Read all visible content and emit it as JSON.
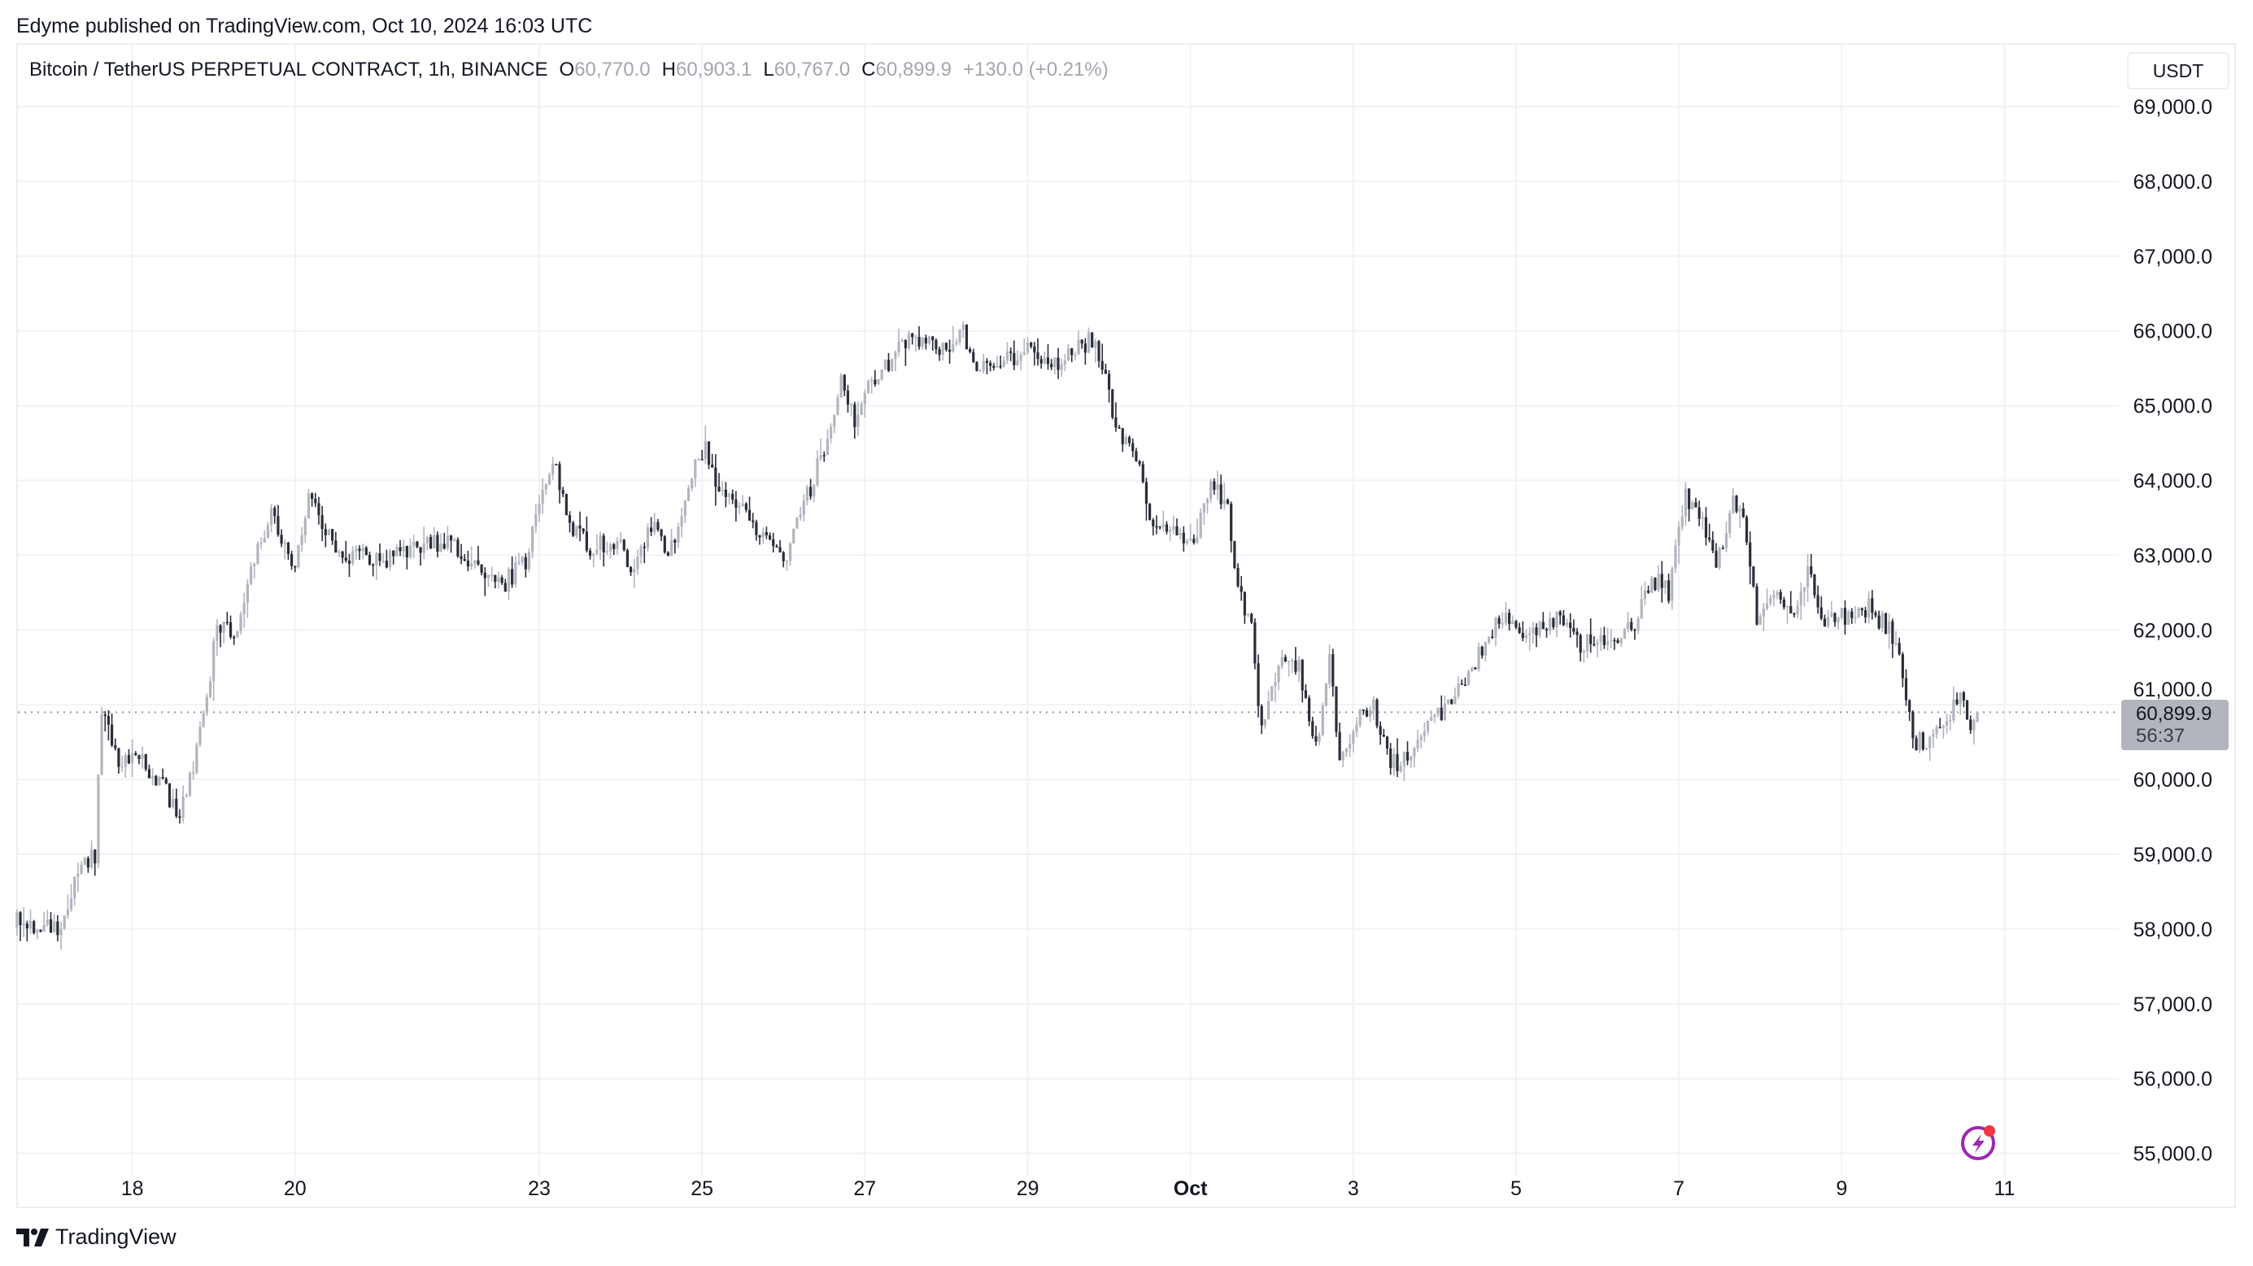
{
  "header": {
    "published": "Edyme published on TradingView.com, Oct 10, 2024 16:03 UTC"
  },
  "legend": {
    "symbol": "Bitcoin / TetherUS PERPETUAL CONTRACT, 1h, BINANCE",
    "o_label": "O",
    "o": "60,770.0",
    "h_label": "H",
    "h": "60,903.1",
    "l_label": "L",
    "l": "60,767.0",
    "c_label": "C",
    "c": "60,899.9",
    "change": "+130.0 (+0.21%)"
  },
  "currency_button": "USDT",
  "last_price": {
    "value": "60,899.9",
    "countdown": "56:37"
  },
  "footer": {
    "brand": "TradingView"
  },
  "icons": {
    "alert": "lightning-alert-icon",
    "logo": "tradingview-logo-icon"
  },
  "colors": {
    "up": "#b2b5be",
    "down": "#2a2e39",
    "grid": "#f0f2f6",
    "alert": "#9c27b0",
    "alert_dot": "#f23645"
  },
  "chart_data": {
    "type": "candlestick",
    "interval": "1h",
    "ylim": [
      55000,
      69000
    ],
    "y_ticks": [
      "55,000.0",
      "56,000.0",
      "57,000.0",
      "58,000.0",
      "59,000.0",
      "60,000.0",
      "61,000.0",
      "62,000.0",
      "63,000.0",
      "64,000.0",
      "65,000.0",
      "66,000.0",
      "67,000.0",
      "68,000.0",
      "69,000.0"
    ],
    "x_ticks": [
      {
        "label": "18",
        "date": "2024-09-18"
      },
      {
        "label": "20",
        "date": "2024-09-20"
      },
      {
        "label": "23",
        "date": "2024-09-23"
      },
      {
        "label": "25",
        "date": "2024-09-25"
      },
      {
        "label": "27",
        "date": "2024-09-27"
      },
      {
        "label": "29",
        "date": "2024-09-29"
      },
      {
        "label": "Oct",
        "date": "2024-10-01",
        "bold": true
      },
      {
        "label": "3",
        "date": "2024-10-03"
      },
      {
        "label": "5",
        "date": "2024-10-05"
      },
      {
        "label": "7",
        "date": "2024-10-07"
      },
      {
        "label": "9",
        "date": "2024-10-09"
      },
      {
        "label": "11",
        "date": "2024-10-11"
      }
    ],
    "grid": true,
    "last_candle": {
      "time": "2024-10-10T16:00",
      "open": 60770.0,
      "high": 60903.1,
      "low": 60767.0,
      "close": 60899.9
    },
    "close_path": [
      [
        "2024-09-16T14:00",
        58100
      ],
      [
        "2024-09-17T02:00",
        58000
      ],
      [
        "2024-09-17T08:00",
        58700
      ],
      [
        "2024-09-17T13:00",
        59000
      ],
      [
        "2024-09-17T15:00",
        61000
      ],
      [
        "2024-09-17T19:00",
        60300
      ],
      [
        "2024-09-18T01:00",
        60300
      ],
      [
        "2024-09-18T08:00",
        60000
      ],
      [
        "2024-09-18T14:00",
        59500
      ],
      [
        "2024-09-18T18:00",
        60200
      ],
      [
        "2024-09-18T22:00",
        61000
      ],
      [
        "2024-09-19T01:00",
        62100
      ],
      [
        "2024-09-19T07:00",
        62000
      ],
      [
        "2024-09-19T11:00",
        62800
      ],
      [
        "2024-09-19T17:00",
        63600
      ],
      [
        "2024-09-20T00:00",
        62800
      ],
      [
        "2024-09-20T04:00",
        63800
      ],
      [
        "2024-09-20T08:00",
        63400
      ],
      [
        "2024-09-20T15:00",
        62800
      ],
      [
        "2024-09-20T19:00",
        63100
      ],
      [
        "2024-09-21T01:00",
        62900
      ],
      [
        "2024-09-21T12:00",
        63100
      ],
      [
        "2024-09-21T20:00",
        63200
      ],
      [
        "2024-09-22T05:00",
        62900
      ],
      [
        "2024-09-22T13:00",
        62600
      ],
      [
        "2024-09-22T20:00",
        62900
      ],
      [
        "2024-09-23T00:00",
        63800
      ],
      [
        "2024-09-23T04:00",
        64300
      ],
      [
        "2024-09-23T08:00",
        63500
      ],
      [
        "2024-09-23T15:00",
        63100
      ],
      [
        "2024-09-23T23:00",
        63200
      ],
      [
        "2024-09-24T03:00",
        62800
      ],
      [
        "2024-09-24T10:00",
        63500
      ],
      [
        "2024-09-24T14:00",
        62900
      ],
      [
        "2024-09-24T20:00",
        64000
      ],
      [
        "2024-09-25T01:00",
        64400
      ],
      [
        "2024-09-25T05:00",
        63900
      ],
      [
        "2024-09-25T11:00",
        63700
      ],
      [
        "2024-09-25T18:00",
        63200
      ],
      [
        "2024-09-26T00:00",
        62900
      ],
      [
        "2024-09-26T04:00",
        63500
      ],
      [
        "2024-09-26T08:00",
        63900
      ],
      [
        "2024-09-26T13:00",
        64600
      ],
      [
        "2024-09-26T17:00",
        65400
      ],
      [
        "2024-09-26T21:00",
        64800
      ],
      [
        "2024-09-27T01:00",
        65300
      ],
      [
        "2024-09-27T08:00",
        65600
      ],
      [
        "2024-09-27T14:00",
        66000
      ],
      [
        "2024-09-27T18:00",
        65800
      ],
      [
        "2024-09-28T01:00",
        65800
      ],
      [
        "2024-09-28T05:00",
        66000
      ],
      [
        "2024-09-28T09:00",
        65500
      ],
      [
        "2024-09-28T18:00",
        65600
      ],
      [
        "2024-09-29T00:00",
        65800
      ],
      [
        "2024-09-29T06:00",
        65500
      ],
      [
        "2024-09-29T13:00",
        65700
      ],
      [
        "2024-09-29T19:00",
        65900
      ],
      [
        "2024-09-29T23:00",
        65400
      ],
      [
        "2024-09-30T02:00",
        64700
      ],
      [
        "2024-09-30T08:00",
        64300
      ],
      [
        "2024-09-30T12:00",
        63500
      ],
      [
        "2024-09-30T18:00",
        63400
      ],
      [
        "2024-10-01T01:00",
        63200
      ],
      [
        "2024-10-01T07:00",
        64000
      ],
      [
        "2024-10-01T11:00",
        63600
      ],
      [
        "2024-10-01T14:00",
        62600
      ],
      [
        "2024-10-01T18:00",
        62000
      ],
      [
        "2024-10-01T21:00",
        60600
      ],
      [
        "2024-10-02T02:00",
        61600
      ],
      [
        "2024-10-02T08:00",
        61500
      ],
      [
        "2024-10-02T13:00",
        60400
      ],
      [
        "2024-10-02T17:00",
        61600
      ],
      [
        "2024-10-02T20:00",
        60200
      ],
      [
        "2024-10-03T01:00",
        60800
      ],
      [
        "2024-10-03T06:00",
        61000
      ],
      [
        "2024-10-03T10:00",
        60300
      ],
      [
        "2024-10-03T14:00",
        60200
      ],
      [
        "2024-10-03T21:00",
        60700
      ],
      [
        "2024-10-04T03:00",
        60900
      ],
      [
        "2024-10-04T09:00",
        61300
      ],
      [
        "2024-10-04T13:00",
        61700
      ],
      [
        "2024-10-04T20:00",
        62200
      ],
      [
        "2024-10-05T02:00",
        61800
      ],
      [
        "2024-10-05T08:00",
        62100
      ],
      [
        "2024-10-05T13:00",
        62200
      ],
      [
        "2024-10-05T19:00",
        61800
      ],
      [
        "2024-10-06T01:00",
        61900
      ],
      [
        "2024-10-06T10:00",
        62000
      ],
      [
        "2024-10-06T16:00",
        62700
      ],
      [
        "2024-10-06T21:00",
        62500
      ],
      [
        "2024-10-07T02:00",
        63800
      ],
      [
        "2024-10-07T07:00",
        63400
      ],
      [
        "2024-10-07T11:00",
        62800
      ],
      [
        "2024-10-07T16:00",
        63800
      ],
      [
        "2024-10-07T20:00",
        63300
      ],
      [
        "2024-10-07T23:00",
        62200
      ],
      [
        "2024-10-08T04:00",
        62500
      ],
      [
        "2024-10-08T11:00",
        62200
      ],
      [
        "2024-10-08T14:00",
        62900
      ],
      [
        "2024-10-08T19:00",
        62100
      ],
      [
        "2024-10-09T02:00",
        62200
      ],
      [
        "2024-10-09T08:00",
        62300
      ],
      [
        "2024-10-09T14:00",
        62000
      ],
      [
        "2024-10-09T17:00",
        61800
      ],
      [
        "2024-10-09T21:00",
        60500
      ],
      [
        "2024-10-10T01:00",
        60500
      ],
      [
        "2024-10-10T07:00",
        60800
      ],
      [
        "2024-10-10T11:00",
        61100
      ],
      [
        "2024-10-10T14:00",
        60600
      ],
      [
        "2024-10-10T16:00",
        60899.9
      ]
    ]
  }
}
